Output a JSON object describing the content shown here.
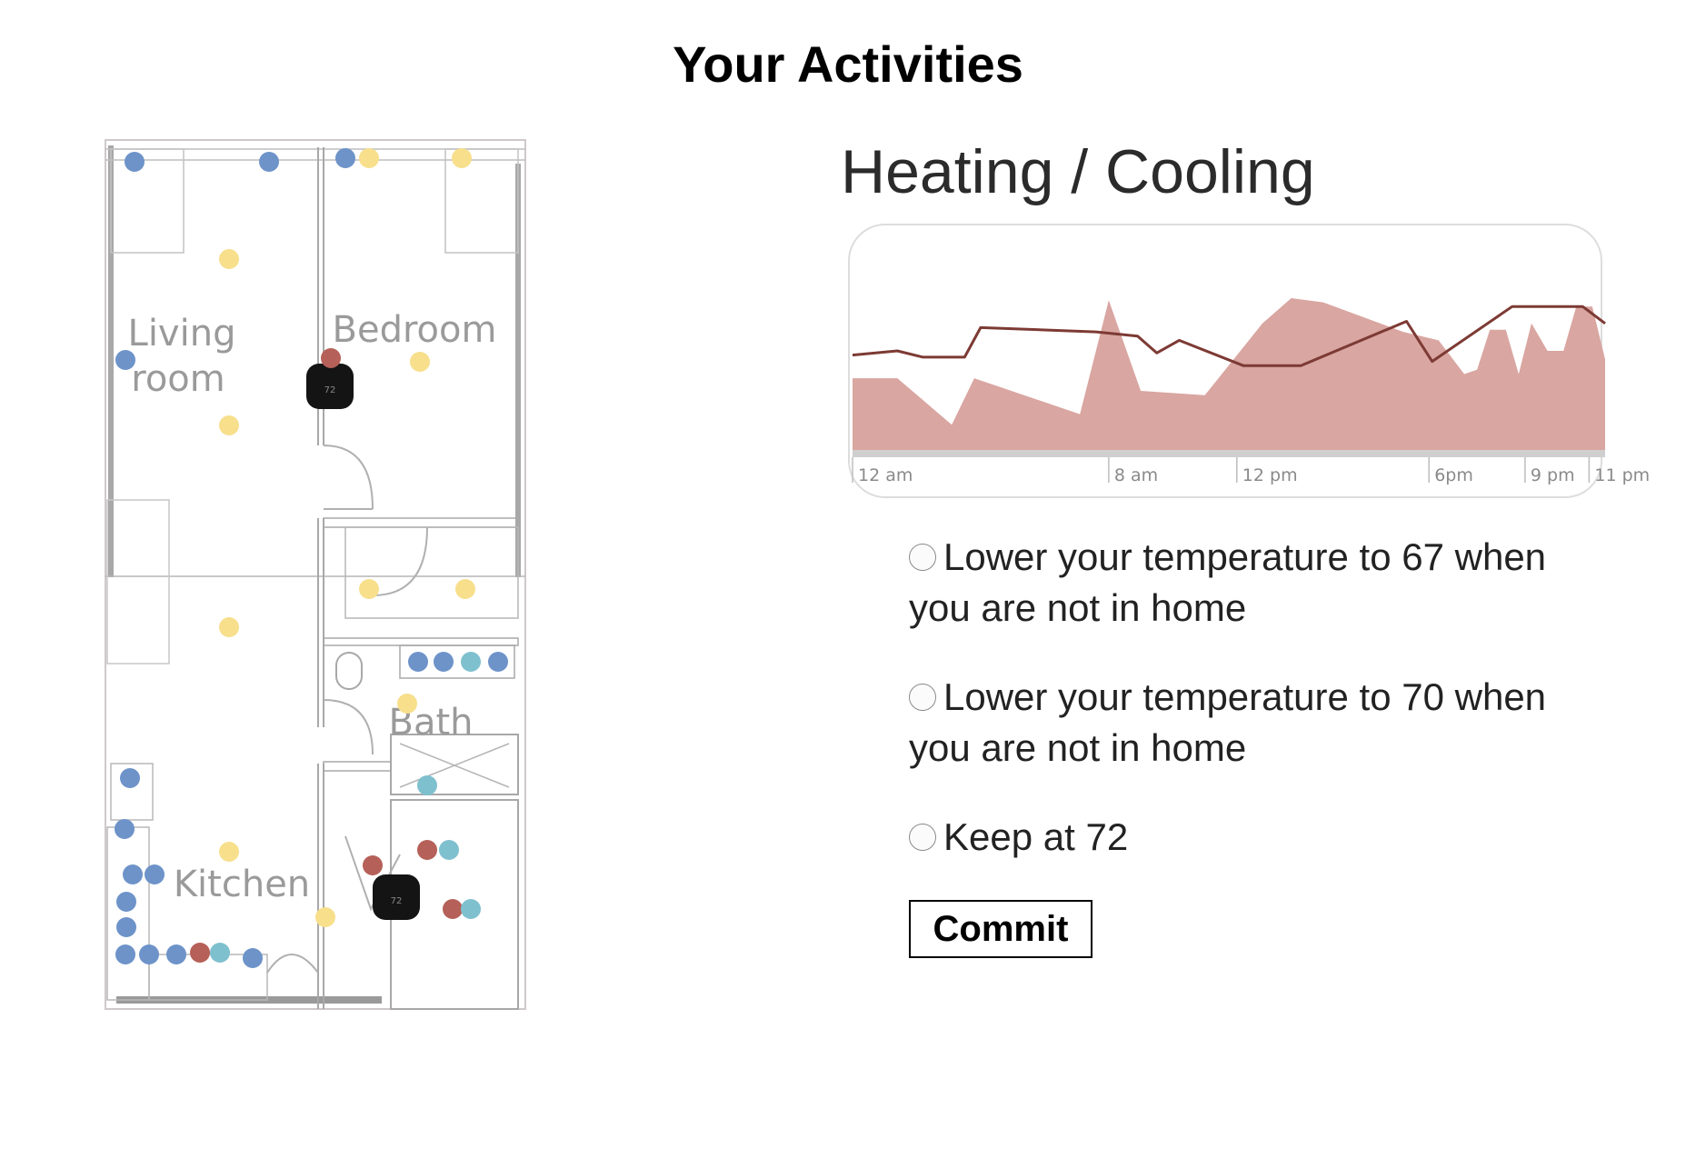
{
  "page": {
    "title": "Your Activities"
  },
  "floorplan": {
    "rooms": {
      "living_line1": "Living",
      "living_line2": "room",
      "bedroom": "Bedroom",
      "bath": "Bath",
      "kitchen": "Kitchen"
    },
    "thermostat_reading": "72",
    "colors": {
      "sensor_blue": "#6d93c9",
      "light_yellow": "#f7df8c",
      "device_red": "#b56058",
      "fixture_teal": "#7fc0cf",
      "thermostat": "#141414"
    }
  },
  "heating": {
    "title": "Heating / Cooling",
    "options": [
      {
        "text": "Lower your temperature to 67 when you are not in home",
        "selected": false
      },
      {
        "text": "Lower your temperature to 70 when you are not in home",
        "selected": false
      },
      {
        "text": "Keep at 72",
        "selected": false
      }
    ],
    "commit_label": "Commit"
  },
  "chart_data": {
    "type": "area",
    "title": "",
    "xlabel": "",
    "ylabel": "",
    "x_ticks": [
      {
        "hour": 0,
        "label": "12 am"
      },
      {
        "hour": 8,
        "label": "8 am"
      },
      {
        "hour": 12,
        "label": "12 pm"
      },
      {
        "hour": 18,
        "label": "6pm"
      },
      {
        "hour": 21,
        "label": "9 pm"
      },
      {
        "hour": 23,
        "label": "11 pm"
      }
    ],
    "xlim": [
      0,
      23.5
    ],
    "ylim": [
      0,
      100
    ],
    "grid": false,
    "series": [
      {
        "kind": "area",
        "color": "#d9a6a1",
        "points": [
          [
            0,
            34
          ],
          [
            1.4,
            34
          ],
          [
            3.1,
            12
          ],
          [
            3.8,
            34
          ],
          [
            7.1,
            17
          ],
          [
            8.0,
            71
          ],
          [
            9.0,
            28
          ],
          [
            11.0,
            26
          ],
          [
            12.8,
            60
          ],
          [
            13.7,
            72
          ],
          [
            14.7,
            70
          ],
          [
            17.2,
            56
          ],
          [
            18.3,
            52
          ],
          [
            19.1,
            36
          ],
          [
            19.5,
            38
          ],
          [
            19.9,
            57
          ],
          [
            20.4,
            57
          ],
          [
            20.8,
            36
          ],
          [
            21.2,
            60
          ],
          [
            21.7,
            47
          ],
          [
            22.2,
            47
          ],
          [
            22.6,
            68
          ],
          [
            23.1,
            68
          ],
          [
            23.5,
            43
          ]
        ]
      },
      {
        "kind": "line",
        "color": "#7d3a34",
        "points": [
          [
            0,
            45
          ],
          [
            1.4,
            47
          ],
          [
            2.2,
            44
          ],
          [
            3.5,
            44
          ],
          [
            4.0,
            58
          ],
          [
            7.6,
            56
          ],
          [
            8.9,
            54
          ],
          [
            9.5,
            46
          ],
          [
            10.2,
            52
          ],
          [
            12.2,
            40
          ],
          [
            14.0,
            40
          ],
          [
            17.3,
            61
          ],
          [
            18.1,
            42
          ],
          [
            20.6,
            68
          ],
          [
            22.8,
            68
          ],
          [
            23.5,
            60
          ]
        ]
      }
    ]
  }
}
